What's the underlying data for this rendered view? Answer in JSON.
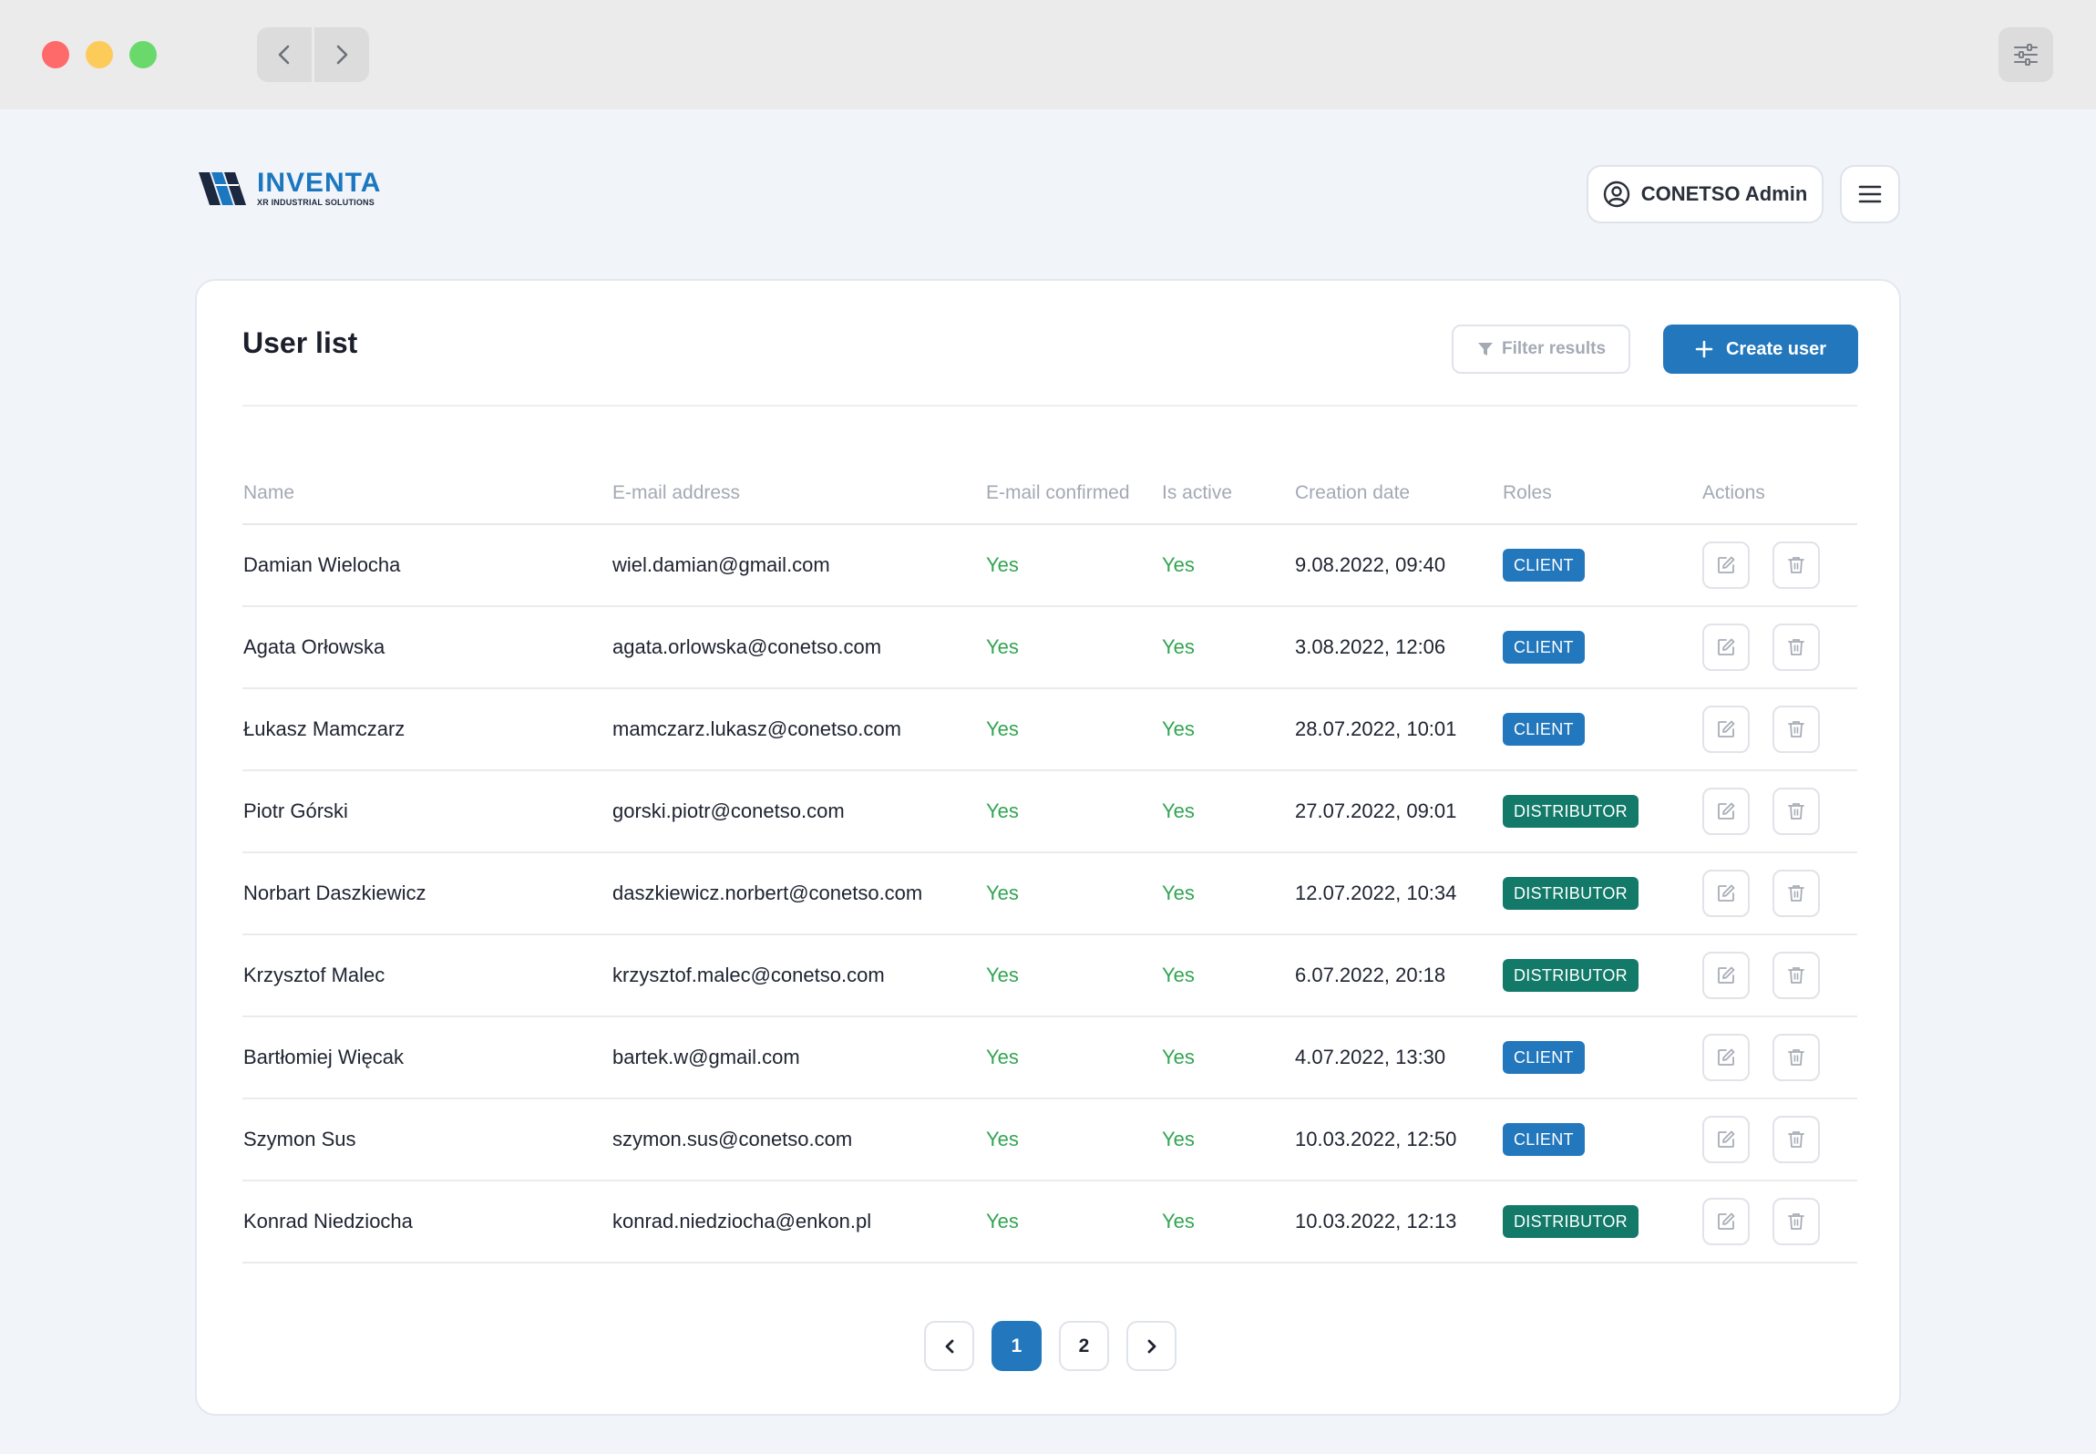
{
  "header": {
    "logo_name": "INVENTA",
    "logo_sub": "XR INDUSTRIAL SOLUTIONS",
    "user_label": "CONETSO Admin"
  },
  "card": {
    "title": "User list",
    "filter_label": "Filter results",
    "create_label": "Create user"
  },
  "table": {
    "columns": [
      "Name",
      "E-mail address",
      "E-mail confirmed",
      "Is active",
      "Creation date",
      "Roles",
      "Actions"
    ],
    "rows": [
      {
        "name": "Damian Wielocha",
        "email": "wiel.damian@gmail.com",
        "confirmed": "Yes",
        "active": "Yes",
        "date": "9.08.2022, 09:40",
        "role": "CLIENT"
      },
      {
        "name": "Agata Orłowska",
        "email": "agata.orlowska@conetso.com",
        "confirmed": "Yes",
        "active": "Yes",
        "date": "3.08.2022, 12:06",
        "role": "CLIENT"
      },
      {
        "name": "Łukasz Mamczarz",
        "email": "mamczarz.lukasz@conetso.com",
        "confirmed": "Yes",
        "active": "Yes",
        "date": "28.07.2022, 10:01",
        "role": "CLIENT"
      },
      {
        "name": "Piotr Górski",
        "email": "gorski.piotr@conetso.com",
        "confirmed": "Yes",
        "active": "Yes",
        "date": "27.07.2022, 09:01",
        "role": "DISTRIBUTOR"
      },
      {
        "name": "Norbart Daszkiewicz",
        "email": "daszkiewicz.norbert@conetso.com",
        "confirmed": "Yes",
        "active": "Yes",
        "date": "12.07.2022, 10:34",
        "role": "DISTRIBUTOR"
      },
      {
        "name": "Krzysztof Malec",
        "email": "krzysztof.malec@conetso.com",
        "confirmed": "Yes",
        "active": "Yes",
        "date": "6.07.2022, 20:18",
        "role": "DISTRIBUTOR"
      },
      {
        "name": "Bartłomiej Więcak",
        "email": "bartek.w@gmail.com",
        "confirmed": "Yes",
        "active": "Yes",
        "date": "4.07.2022, 13:30",
        "role": "CLIENT"
      },
      {
        "name": "Szymon Sus",
        "email": "szymon.sus@conetso.com",
        "confirmed": "Yes",
        "active": "Yes",
        "date": "10.03.2022, 12:50",
        "role": "CLIENT"
      },
      {
        "name": "Konrad Niedziocha",
        "email": "konrad.niedziocha@enkon.pl",
        "confirmed": "Yes",
        "active": "Yes",
        "date": "10.03.2022, 12:13",
        "role": "DISTRIBUTOR"
      }
    ]
  },
  "pagination": {
    "pages": [
      "1",
      "2"
    ],
    "current": "1"
  },
  "colors": {
    "primary": "#2277bd",
    "distributor": "#137a6a",
    "yes": "#32a552",
    "background": "#f1f4f9"
  }
}
